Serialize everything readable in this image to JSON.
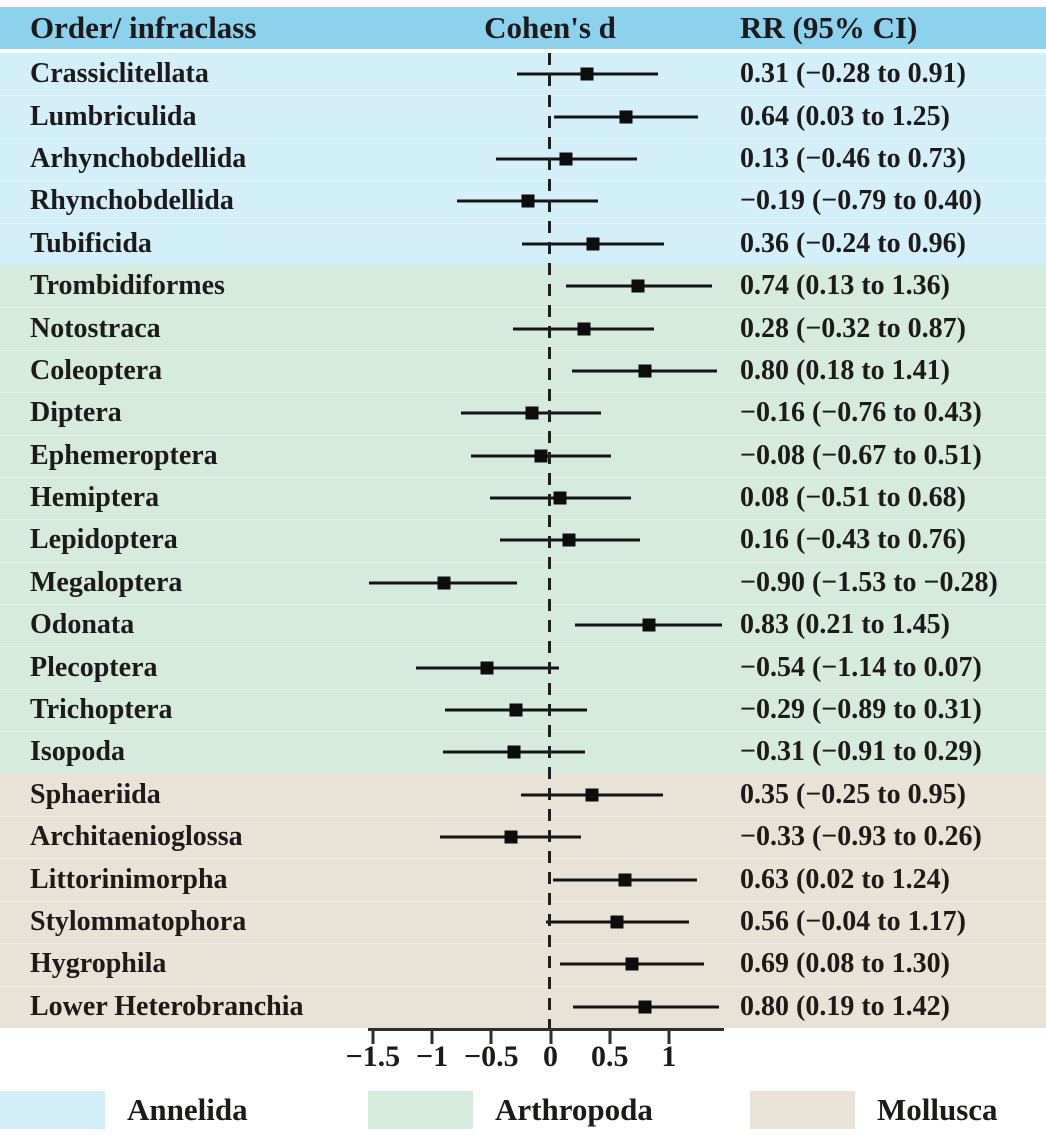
{
  "header": {
    "order_col": "Order/ infraclass",
    "cohens_d_col": "Cohen's d",
    "rr_col": "RR (95% CI)"
  },
  "colors": {
    "header_bg": "#8cd2ec",
    "annelida_bg": "#d3f0fa",
    "arthropoda_bg": "#d5ebde",
    "mollusca_bg": "#e9e2d6",
    "line_color": "#141414"
  },
  "chart_data": {
    "type": "forest",
    "title": "",
    "xlabel": "Cohen's d",
    "xlim": [
      -1.55,
      1.47
    ],
    "zero_line": 0,
    "legend_position": "bottom",
    "axis": {
      "ticks": [
        {
          "v": -1.5,
          "label": "−1.5"
        },
        {
          "v": -1.0,
          "label": "−1"
        },
        {
          "v": -0.5,
          "label": "−0.5"
        },
        {
          "v": 0.0,
          "label": "0"
        },
        {
          "v": 0.5,
          "label": "0.5"
        },
        {
          "v": 1.0,
          "label": "1"
        }
      ]
    },
    "groups": [
      {
        "name": "Annelida",
        "color": "#d3f0fa",
        "rows": [
          {
            "label": "Crassiclitellata",
            "d": 0.31,
            "lo": -0.28,
            "hi": 0.91,
            "rr": "0.31 (−0.28 to 0.91)"
          },
          {
            "label": "Lumbriculida",
            "d": 0.64,
            "lo": 0.03,
            "hi": 1.25,
            "rr": "0.64 (0.03 to 1.25)"
          },
          {
            "label": "Arhynchobdellida",
            "d": 0.13,
            "lo": -0.46,
            "hi": 0.73,
            "rr": "0.13 (−0.46 to 0.73)"
          },
          {
            "label": "Rhynchobdellida",
            "d": -0.19,
            "lo": -0.79,
            "hi": 0.4,
            "rr": "−0.19 (−0.79 to 0.40)"
          },
          {
            "label": "Tubificida",
            "d": 0.36,
            "lo": -0.24,
            "hi": 0.96,
            "rr": "0.36 (−0.24 to 0.96)"
          }
        ]
      },
      {
        "name": "Arthropoda",
        "color": "#d5ebde",
        "rows": [
          {
            "label": "Trombidiformes",
            "d": 0.74,
            "lo": 0.13,
            "hi": 1.36,
            "rr": "0.74 (0.13 to 1.36)"
          },
          {
            "label": "Notostraca",
            "d": 0.28,
            "lo": -0.32,
            "hi": 0.87,
            "rr": "0.28 (−0.32 to 0.87)"
          },
          {
            "label": "Coleoptera",
            "d": 0.8,
            "lo": 0.18,
            "hi": 1.41,
            "rr": "0.80 (0.18 to 1.41)"
          },
          {
            "label": "Diptera",
            "d": -0.16,
            "lo": -0.76,
            "hi": 0.43,
            "rr": "−0.16 (−0.76 to 0.43)"
          },
          {
            "label": "Ephemeroptera",
            "d": -0.08,
            "lo": -0.67,
            "hi": 0.51,
            "rr": "−0.08 (−0.67 to 0.51)"
          },
          {
            "label": "Hemiptera",
            "d": 0.08,
            "lo": -0.51,
            "hi": 0.68,
            "rr": "0.08 (−0.51 to 0.68)"
          },
          {
            "label": "Lepidoptera",
            "d": 0.16,
            "lo": -0.43,
            "hi": 0.76,
            "rr": "0.16 (−0.43 to 0.76)"
          },
          {
            "label": "Megaloptera",
            "d": -0.9,
            "lo": -1.53,
            "hi": -0.28,
            "rr": "−0.90 (−1.53 to −0.28)"
          },
          {
            "label": "Odonata",
            "d": 0.83,
            "lo": 0.21,
            "hi": 1.45,
            "rr": "0.83 (0.21 to 1.45)"
          },
          {
            "label": "Plecoptera",
            "d": -0.54,
            "lo": -1.14,
            "hi": 0.07,
            "rr": "−0.54 (−1.14 to 0.07)"
          },
          {
            "label": "Trichoptera",
            "d": -0.29,
            "lo": -0.89,
            "hi": 0.31,
            "rr": "−0.29 (−0.89 to 0.31)"
          },
          {
            "label": "Isopoda",
            "d": -0.31,
            "lo": -0.91,
            "hi": 0.29,
            "rr": "−0.31 (−0.91 to 0.29)"
          }
        ]
      },
      {
        "name": "Mollusca",
        "color": "#e9e2d6",
        "rows": [
          {
            "label": "Sphaeriida",
            "d": 0.35,
            "lo": -0.25,
            "hi": 0.95,
            "rr": "0.35 (−0.25 to 0.95)"
          },
          {
            "label": "Architaenioglossa",
            "d": -0.33,
            "lo": -0.93,
            "hi": 0.26,
            "rr": "−0.33 (−0.93 to 0.26)"
          },
          {
            "label": "Littorinimorpha",
            "d": 0.63,
            "lo": 0.02,
            "hi": 1.24,
            "rr": "0.63 (0.02 to 1.24)"
          },
          {
            "label": "Stylommatophora",
            "d": 0.56,
            "lo": -0.04,
            "hi": 1.17,
            "rr": "0.56 (−0.04 to 1.17)"
          },
          {
            "label": "Hygrophila",
            "d": 0.69,
            "lo": 0.08,
            "hi": 1.3,
            "rr": "0.69 (0.08 to 1.30)"
          },
          {
            "label": "Lower Heterobranchia",
            "d": 0.8,
            "lo": 0.19,
            "hi": 1.42,
            "rr": "0.80 (0.19 to 1.42)"
          }
        ]
      }
    ],
    "legend": [
      {
        "label": "Annelida",
        "color": "#d3f0fa"
      },
      {
        "label": "Arthropoda",
        "color": "#d5ebde"
      },
      {
        "label": "Mollusca",
        "color": "#e9e2d6"
      }
    ]
  }
}
